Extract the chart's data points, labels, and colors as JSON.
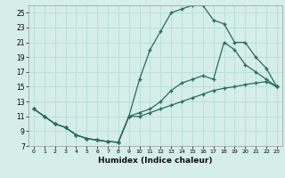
{
  "xlabel": "Humidex (Indice chaleur)",
  "bg_color": "#d5eeea",
  "line_color": "#2a6b60",
  "grid_color": "#b8ddd8",
  "xlim": [
    -0.5,
    23.5
  ],
  "ylim": [
    7,
    26
  ],
  "xticks": [
    0,
    1,
    2,
    3,
    4,
    5,
    6,
    7,
    8,
    9,
    10,
    11,
    12,
    13,
    14,
    15,
    16,
    17,
    18,
    19,
    20,
    21,
    22,
    23
  ],
  "yticks": [
    7,
    9,
    11,
    13,
    15,
    17,
    19,
    21,
    23,
    25
  ],
  "line_top_x": [
    0,
    1,
    2,
    3,
    4,
    5,
    6,
    7,
    8,
    9,
    10,
    11,
    12,
    13,
    14,
    15,
    16,
    17,
    18,
    19,
    20,
    21,
    22,
    23
  ],
  "line_top_y": [
    12,
    11,
    10,
    9.5,
    8.5,
    8,
    7.8,
    7.6,
    7.5,
    11,
    16,
    20,
    22.5,
    25,
    25.5,
    26,
    26,
    24,
    23.5,
    21,
    21,
    19,
    17.5,
    15
  ],
  "line_mid_x": [
    0,
    1,
    2,
    3,
    4,
    5,
    6,
    7,
    8,
    9,
    10,
    11,
    12,
    13,
    14,
    15,
    16,
    17,
    18,
    19,
    20,
    21,
    22,
    23
  ],
  "line_mid_y": [
    12,
    11,
    10,
    9.5,
    8.5,
    8,
    7.8,
    7.6,
    7.5,
    11,
    11.5,
    12,
    13,
    14.5,
    15.5,
    16,
    16.5,
    16,
    21,
    20,
    18,
    17,
    16,
    15
  ],
  "line_bot_x": [
    0,
    1,
    2,
    3,
    4,
    5,
    6,
    7,
    8,
    9,
    10,
    11,
    12,
    13,
    14,
    15,
    16,
    17,
    18,
    19,
    20,
    21,
    22,
    23
  ],
  "line_bot_y": [
    12,
    11,
    10,
    9.5,
    8.5,
    8,
    7.8,
    7.6,
    7.5,
    11,
    11,
    11.5,
    12,
    12.5,
    13,
    13.5,
    14,
    14.5,
    14.8,
    15,
    15.3,
    15.5,
    15.7,
    15
  ]
}
